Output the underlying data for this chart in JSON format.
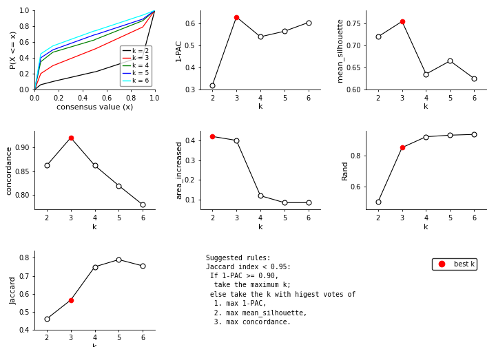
{
  "k_values": [
    2,
    3,
    4,
    5,
    6
  ],
  "pac_1minus": [
    0.32,
    0.63,
    0.54,
    0.565,
    0.605
  ],
  "mean_silhouette": [
    0.72,
    0.755,
    0.635,
    0.665,
    0.625
  ],
  "concordance": [
    0.862,
    0.92,
    0.862,
    0.82,
    0.78
  ],
  "area_increased": [
    0.42,
    0.4,
    0.12,
    0.085,
    0.085
  ],
  "rand": [
    0.5,
    0.85,
    0.92,
    0.93,
    0.935
  ],
  "jaccard": [
    0.46,
    0.565,
    0.75,
    0.79,
    0.755
  ],
  "best_k_pac": 3,
  "best_k_silhouette": 3,
  "best_k_concordance": 3,
  "best_k_area": 2,
  "best_k_rand": 3,
  "best_k_jaccard": 3,
  "cdf_colors": [
    "black",
    "red",
    "green",
    "blue",
    "cyan"
  ],
  "cdf_labels": [
    "k = 2",
    "k = 3",
    "k = 4",
    "k = 5",
    "k = 6"
  ],
  "best_k_color": "#FF0000",
  "open_circle_color": "white",
  "line_color": "black",
  "axis_bg": "white",
  "title_fontsize": 9,
  "label_fontsize": 8,
  "tick_fontsize": 7
}
